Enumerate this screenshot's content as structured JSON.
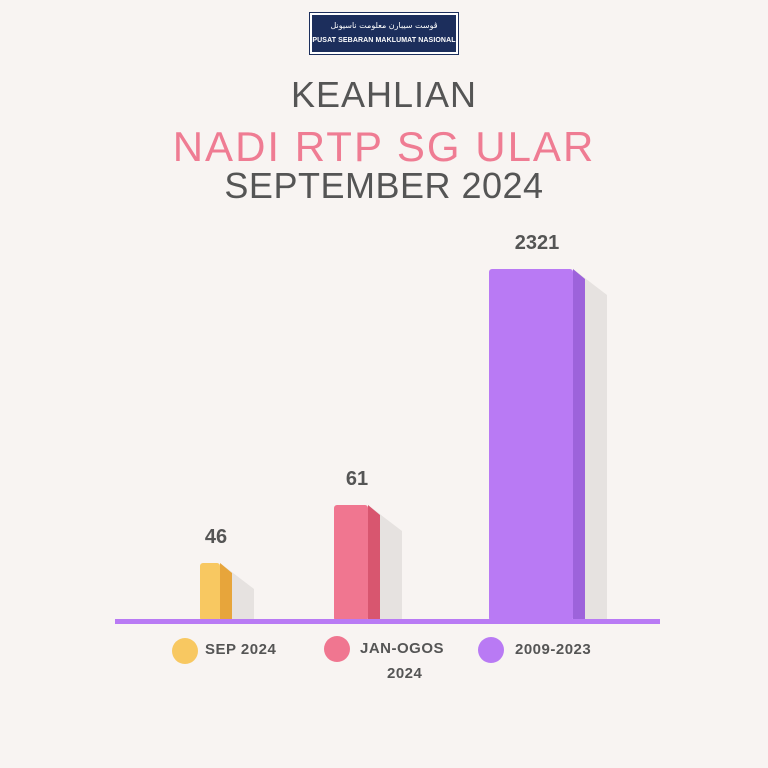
{
  "logo": {
    "jawi": "ڤوست سيبارن معلومت ناسيونل",
    "latin": "PUSAT SEBARAN MAKLUMAT NASIONAL"
  },
  "header": {
    "line1": "KEAHLIAN",
    "line2": "NADI RTP SG ULAR",
    "line3": "SEPTEMBER 2024"
  },
  "legend": [
    {
      "label": "SEP 2024",
      "label2": "",
      "color": "#f8c861"
    },
    {
      "label": "JAN-OGOS",
      "label2": "2024",
      "color": "#f07690"
    },
    {
      "label": "2009-2023",
      "label2": "",
      "color": "#b97af4"
    }
  ],
  "chart_data": {
    "type": "bar",
    "categories": [
      "SEP 2024",
      "JAN-OGOS 2024",
      "2009-2023"
    ],
    "values": [
      46,
      61,
      2321
    ],
    "data_labels": [
      "46",
      "61",
      "2321"
    ],
    "colors": [
      "#f8c861",
      "#f07690",
      "#b97af4"
    ],
    "side_colors": [
      "#e7a53b",
      "#d8566f",
      "#9d63db"
    ],
    "baseline_color": "#b97af4",
    "title": "",
    "xlabel": "",
    "ylabel": ""
  }
}
